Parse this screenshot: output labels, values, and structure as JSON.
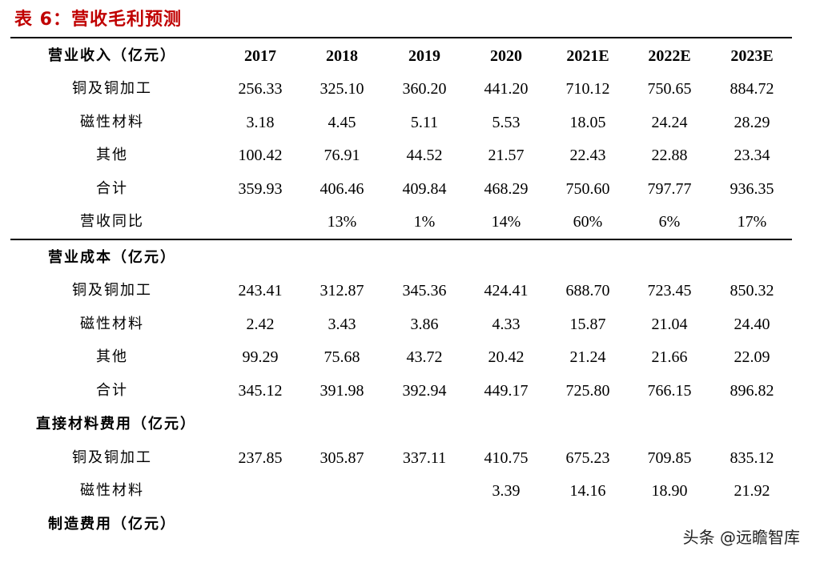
{
  "title": "表 6：营收毛利预测",
  "header": {
    "label": "营业收入（亿元）",
    "years": [
      "2017",
      "2018",
      "2019",
      "2020",
      "2021E",
      "2022E",
      "2023E"
    ]
  },
  "revenue": {
    "rows": [
      {
        "label": "铜及铜加工",
        "values": [
          "256.33",
          "325.10",
          "360.20",
          "441.20",
          "710.12",
          "750.65",
          "884.72"
        ]
      },
      {
        "label": "磁性材料",
        "values": [
          "3.18",
          "4.45",
          "5.11",
          "5.53",
          "18.05",
          "24.24",
          "28.29"
        ]
      },
      {
        "label": "其他",
        "values": [
          "100.42",
          "76.91",
          "44.52",
          "21.57",
          "22.43",
          "22.88",
          "23.34"
        ]
      },
      {
        "label": "合计",
        "values": [
          "359.93",
          "406.46",
          "409.84",
          "468.29",
          "750.60",
          "797.77",
          "936.35"
        ]
      },
      {
        "label": "营收同比",
        "values": [
          "",
          "13%",
          "1%",
          "14%",
          "60%",
          "6%",
          "17%"
        ]
      }
    ]
  },
  "cost": {
    "label": "营业成本（亿元）",
    "rows": [
      {
        "label": "铜及铜加工",
        "values": [
          "243.41",
          "312.87",
          "345.36",
          "424.41",
          "688.70",
          "723.45",
          "850.32"
        ]
      },
      {
        "label": "磁性材料",
        "values": [
          "2.42",
          "3.43",
          "3.86",
          "4.33",
          "15.87",
          "21.04",
          "24.40"
        ]
      },
      {
        "label": "其他",
        "values": [
          "99.29",
          "75.68",
          "43.72",
          "20.42",
          "21.24",
          "21.66",
          "22.09"
        ]
      },
      {
        "label": "合计",
        "values": [
          "345.12",
          "391.98",
          "392.94",
          "449.17",
          "725.80",
          "766.15",
          "896.82"
        ]
      }
    ]
  },
  "material": {
    "label": "直接材料费用（亿元）",
    "rows": [
      {
        "label": "铜及铜加工",
        "values": [
          "237.85",
          "305.87",
          "337.11",
          "410.75",
          "675.23",
          "709.85",
          "835.12"
        ]
      },
      {
        "label": "磁性材料",
        "values": [
          "",
          "",
          "",
          "3.39",
          "14.16",
          "18.90",
          "21.92"
        ]
      }
    ]
  },
  "manufacturing": {
    "label": "制造费用（亿元）"
  },
  "watermark": "头条 @远瞻智库"
}
